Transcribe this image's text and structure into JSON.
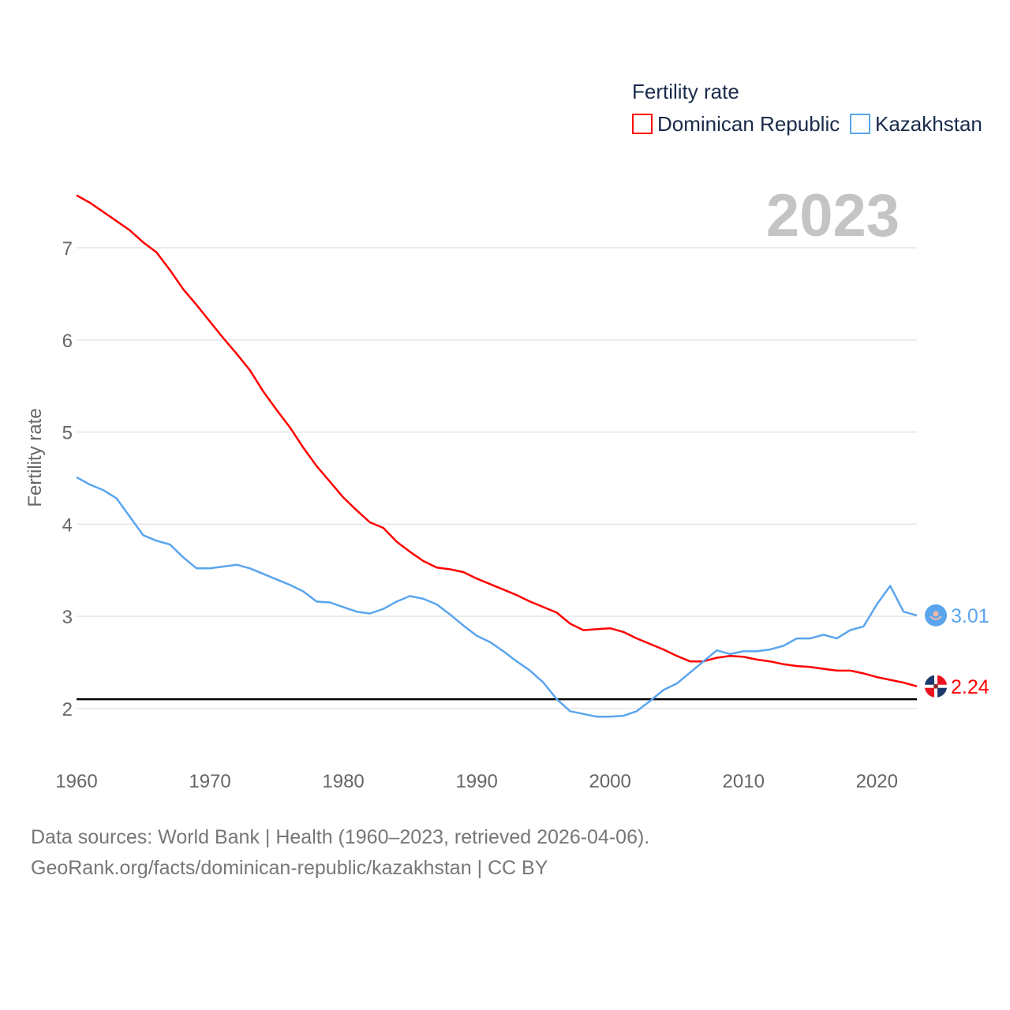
{
  "chart_data": {
    "type": "line",
    "legend_title": "Fertility rate",
    "legend_position": "top-right",
    "year_label": "2023",
    "ylabel": "Fertility rate",
    "xlabel": "",
    "xlim": [
      1960,
      2023
    ],
    "ylim": [
      1.45,
      7.72
    ],
    "xticks": [
      1960,
      1970,
      1980,
      1990,
      2000,
      2010,
      2020
    ],
    "yticks": [
      2,
      3,
      4,
      5,
      6,
      7
    ],
    "grid": true,
    "reference_line": 2.1,
    "x": [
      1960,
      1961,
      1962,
      1963,
      1964,
      1965,
      1966,
      1967,
      1968,
      1969,
      1970,
      1971,
      1972,
      1973,
      1974,
      1975,
      1976,
      1977,
      1978,
      1979,
      1980,
      1981,
      1982,
      1983,
      1984,
      1985,
      1986,
      1987,
      1988,
      1989,
      1990,
      1991,
      1992,
      1993,
      1994,
      1995,
      1996,
      1997,
      1998,
      1999,
      2000,
      2001,
      2002,
      2003,
      2004,
      2005,
      2006,
      2007,
      2008,
      2009,
      2010,
      2011,
      2012,
      2013,
      2014,
      2015,
      2016,
      2017,
      2018,
      2019,
      2020,
      2021,
      2022,
      2023
    ],
    "series": [
      {
        "name": "Dominican Republic",
        "color": "#ff0000",
        "end_label": "2.24",
        "values": [
          7.57,
          7.49,
          7.39,
          7.29,
          7.19,
          7.06,
          6.95,
          6.76,
          6.55,
          6.38,
          6.2,
          6.02,
          5.85,
          5.67,
          5.44,
          5.24,
          5.05,
          4.83,
          4.63,
          4.46,
          4.29,
          4.15,
          4.02,
          3.96,
          3.81,
          3.7,
          3.6,
          3.53,
          3.51,
          3.48,
          3.41,
          3.35,
          3.29,
          3.23,
          3.16,
          3.1,
          3.04,
          2.92,
          2.85,
          2.86,
          2.87,
          2.83,
          2.76,
          2.7,
          2.64,
          2.57,
          2.51,
          2.51,
          2.55,
          2.57,
          2.56,
          2.53,
          2.51,
          2.48,
          2.46,
          2.45,
          2.43,
          2.41,
          2.41,
          2.38,
          2.34,
          2.31,
          2.28,
          2.24
        ]
      },
      {
        "name": "Kazakhstan",
        "color": "#5aa5ee",
        "end_label": "3.01",
        "values": [
          4.51,
          4.43,
          4.37,
          4.28,
          4.08,
          3.88,
          3.82,
          3.78,
          3.64,
          3.52,
          3.52,
          3.54,
          3.56,
          3.52,
          3.46,
          3.4,
          3.34,
          3.27,
          3.16,
          3.15,
          3.1,
          3.05,
          3.03,
          3.08,
          3.16,
          3.22,
          3.19,
          3.13,
          3.02,
          2.9,
          2.79,
          2.72,
          2.62,
          2.51,
          2.41,
          2.28,
          2.1,
          1.97,
          1.94,
          1.91,
          1.91,
          1.92,
          1.97,
          2.08,
          2.2,
          2.27,
          2.39,
          2.51,
          2.63,
          2.59,
          2.62,
          2.62,
          2.64,
          2.68,
          2.76,
          2.76,
          2.8,
          2.76,
          2.85,
          2.89,
          3.13,
          3.33,
          3.05,
          3.01
        ]
      }
    ]
  },
  "footer": {
    "line1": "Data sources: World Bank | Health (1960–2023, retrieved 2026-04-06).",
    "line2": "GeoRank.org/facts/dominican-republic/kazakhstan | CC BY"
  }
}
